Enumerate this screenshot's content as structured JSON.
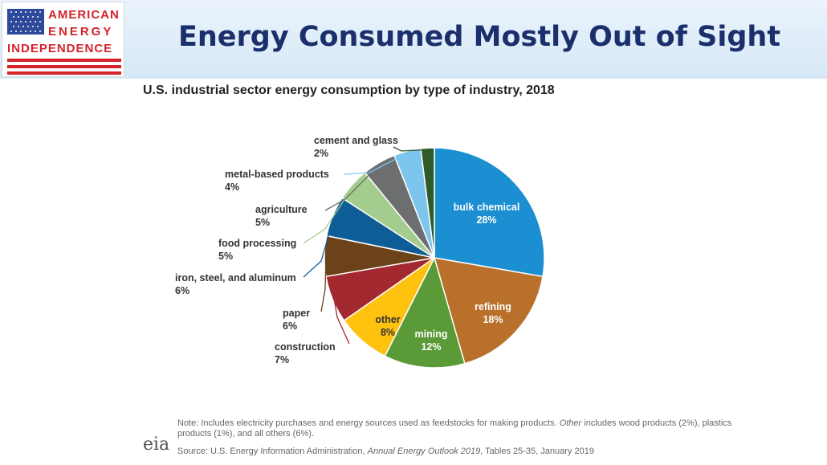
{
  "header": {
    "logo_line1": "AMERICAN",
    "logo_line2": "ENERGY",
    "logo_line3": "INDEPENDENCE",
    "title": "Energy Consumed Mostly Out of Sight"
  },
  "colors": {
    "title": "#1a2f6b",
    "logo_red": "#d4232a",
    "flag_blue": "#2d4a9a",
    "header_bg": "#dbeaf7"
  },
  "chart_data": {
    "type": "pie",
    "title": "U.S. industrial sector energy consumption by type of industry, 2018",
    "slices": [
      {
        "label": "bulk chemical",
        "value": 28,
        "value_label": "28%",
        "color": "#1b8fd1"
      },
      {
        "label": "refining",
        "value": 18,
        "value_label": "18%",
        "color": "#b8702b"
      },
      {
        "label": "mining",
        "value": 12,
        "value_label": "12%",
        "color": "#5a9a37"
      },
      {
        "label": "other",
        "value": 8,
        "value_label": "8%",
        "color": "#ffc20e"
      },
      {
        "label": "construction",
        "value": 7,
        "value_label": "7%",
        "color": "#a3282f"
      },
      {
        "label": "paper",
        "value": 6,
        "value_label": "6%",
        "color": "#6b421a"
      },
      {
        "label": "iron, steel, and aluminum",
        "value": 6,
        "value_label": "6%",
        "color": "#0f5d96"
      },
      {
        "label": "food processing",
        "value": 5,
        "value_label": "5%",
        "color": "#a4cc8e"
      },
      {
        "label": "agriculture",
        "value": 5,
        "value_label": "5%",
        "color": "#6d6e70"
      },
      {
        "label": "metal-based products",
        "value": 4,
        "value_label": "4%",
        "color": "#7cc6ee"
      },
      {
        "label": "cement and glass",
        "value": 2,
        "value_label": "2%",
        "color": "#2f5a2a"
      }
    ]
  },
  "footer": {
    "note_prefix": "Note: Includes electricity purchases and energy sources used as feedstocks for making products. ",
    "note_other": "Other",
    "note_suffix": " includes wood products (2%), plastics products (1%), and all others (6%).",
    "source_prefix": "Source: U.S. Energy Information Administration, ",
    "source_title": "Annual Energy Outlook 2019",
    "source_suffix": ", Tables 25-35, January 2019",
    "eia_logo": "eia"
  }
}
